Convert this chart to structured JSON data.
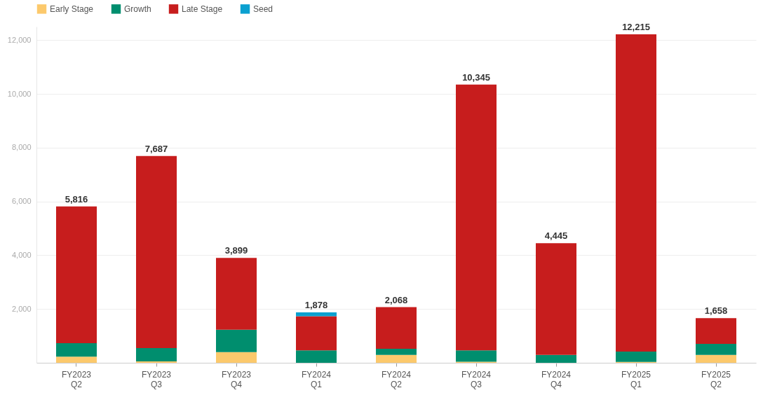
{
  "chart_data": {
    "type": "bar",
    "stacked": true,
    "categories": [
      "FY2023 Q2",
      "FY2023 Q3",
      "FY2023 Q4",
      "FY2024 Q1",
      "FY2024 Q2",
      "FY2024 Q3",
      "FY2024 Q4",
      "FY2025 Q1",
      "FY2025 Q2"
    ],
    "series": [
      {
        "name": "Early Stage",
        "color": "#fcc96c",
        "values": [
          230,
          50,
          400,
          0,
          290,
          40,
          0,
          30,
          290
        ]
      },
      {
        "name": "Growth",
        "color": "#008e6e",
        "values": [
          500,
          495,
          830,
          460,
          230,
          420,
          290,
          385,
          410
        ]
      },
      {
        "name": "Late Stage",
        "color": "#c71d1d",
        "values": [
          5086,
          7142,
          2669,
          1270,
          1548,
          9885,
          4155,
          11800,
          958
        ]
      },
      {
        "name": "Seed",
        "color": "#0aa0d0",
        "values": [
          0,
          0,
          0,
          148,
          0,
          0,
          0,
          0,
          0
        ]
      }
    ],
    "totals": [
      "5,816",
      "7,687",
      "3,899",
      "1,878",
      "2,068",
      "10,345",
      "4,445",
      "12,215",
      "1,658"
    ],
    "ylim": [
      0,
      12500
    ],
    "yticks": [
      {
        "value": 0,
        "label": null
      },
      {
        "value": 2000,
        "label": "2,000"
      },
      {
        "value": 4000,
        "label": "4,000"
      },
      {
        "value": 6000,
        "label": "6,000"
      },
      {
        "value": 8000,
        "label": "8,000"
      },
      {
        "value": 10000,
        "label": "10,000"
      },
      {
        "value": 12000,
        "label": "12,000"
      }
    ],
    "grid": "y",
    "legend": "top left"
  }
}
